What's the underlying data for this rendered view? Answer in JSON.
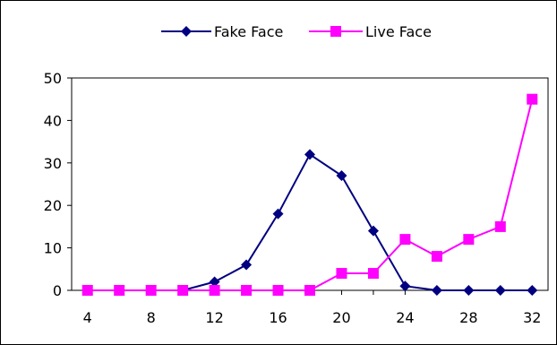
{
  "chart_data": {
    "type": "line",
    "x": [
      4,
      6,
      8,
      10,
      12,
      14,
      16,
      18,
      20,
      22,
      24,
      26,
      28,
      30,
      32
    ],
    "x_tick_labels": [
      "4",
      "8",
      "12",
      "16",
      "20",
      "24",
      "28",
      "32"
    ],
    "x_tick_values": [
      4,
      8,
      12,
      16,
      20,
      24,
      28,
      32
    ],
    "y_tick_labels": [
      "0",
      "10",
      "20",
      "30",
      "40",
      "50"
    ],
    "y_tick_values": [
      0,
      10,
      20,
      30,
      40,
      50
    ],
    "ylim": [
      0,
      50
    ],
    "xlim": [
      3,
      33
    ],
    "grid": false,
    "legend_position": "top-center",
    "series": [
      {
        "name": "Fake Face",
        "color": "#000080",
        "marker": "diamond",
        "values": [
          0,
          0,
          0,
          0,
          2,
          6,
          18,
          32,
          27,
          14,
          1,
          0,
          0,
          0,
          0
        ]
      },
      {
        "name": "Live Face",
        "color": "#ff00ff",
        "marker": "square",
        "values": [
          0,
          0,
          0,
          0,
          0,
          0,
          0,
          0,
          4,
          4,
          12,
          8,
          12,
          15,
          45
        ]
      }
    ]
  }
}
